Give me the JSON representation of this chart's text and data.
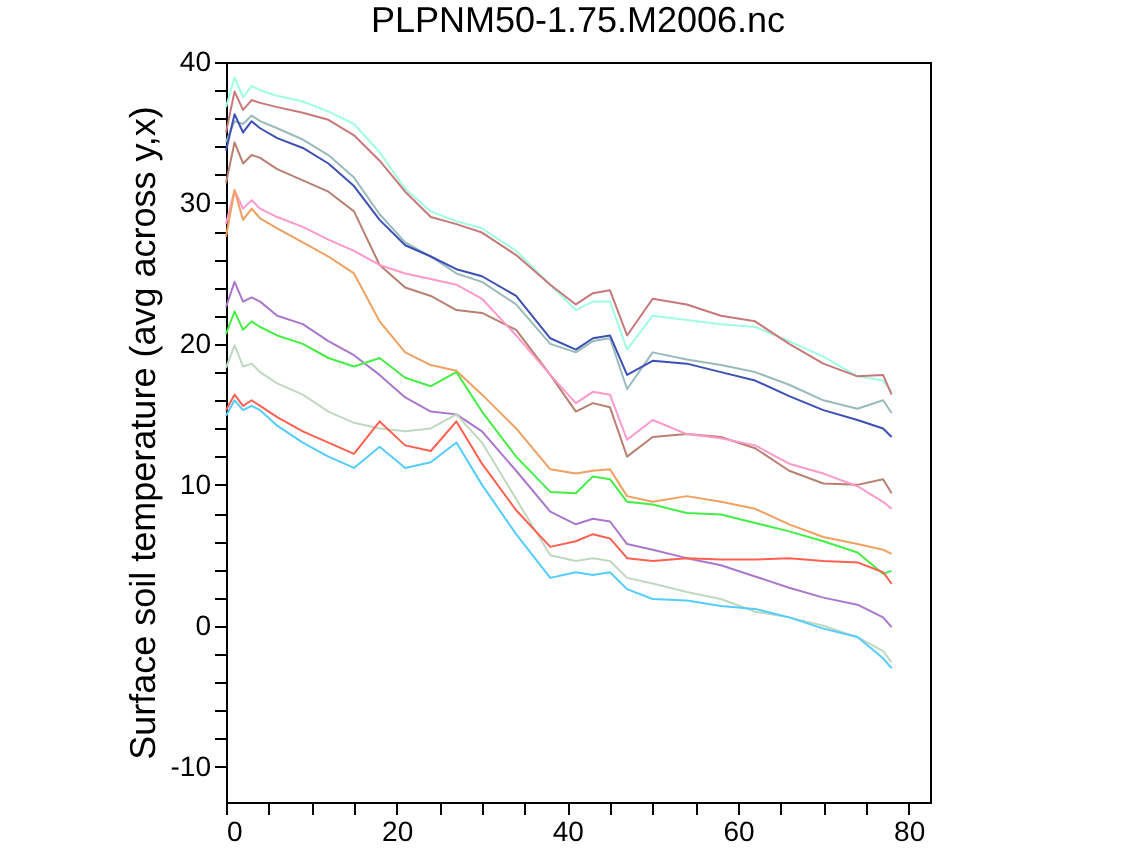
{
  "chart_data": {
    "type": "line",
    "title": "PLPNM50-1.75.M2006.nc",
    "ylabel": "Surface soil temperature (avg across y,x)",
    "x": [
      0,
      1,
      2,
      3,
      4,
      6,
      9,
      12,
      15,
      18,
      21,
      24,
      27,
      30,
      34,
      38,
      41,
      43,
      45,
      47,
      50,
      54,
      58,
      62,
      66,
      70,
      74,
      77,
      78
    ],
    "xlim": [
      0,
      82.5
    ],
    "ylim": [
      -12.5,
      40
    ],
    "xticks": [
      0,
      {
        "value": 5,
        "label": null
      },
      {
        "value": 10,
        "label": null
      },
      {
        "value": 15,
        "label": null
      },
      20,
      {
        "value": 25,
        "label": null
      },
      {
        "value": 30,
        "label": null
      },
      {
        "value": 35,
        "label": null
      },
      40,
      {
        "value": 45,
        "label": null
      },
      {
        "value": 50,
        "label": null
      },
      {
        "value": 55,
        "label": null
      },
      60,
      {
        "value": 65,
        "label": null
      },
      {
        "value": 70,
        "label": null
      },
      {
        "value": 75,
        "label": null
      },
      80
    ],
    "yticks": [
      -10,
      {
        "value": -8,
        "label": null
      },
      {
        "value": -6,
        "label": null
      },
      {
        "value": -4,
        "label": null
      },
      {
        "value": -2,
        "label": null
      },
      0,
      {
        "value": 2,
        "label": null
      },
      {
        "value": 4,
        "label": null
      },
      {
        "value": 6,
        "label": null
      },
      {
        "value": 8,
        "label": null
      },
      10,
      {
        "value": 12,
        "label": null
      },
      {
        "value": 14,
        "label": null
      },
      {
        "value": 16,
        "label": null
      },
      {
        "value": 18,
        "label": null
      },
      20,
      {
        "value": 22,
        "label": null
      },
      {
        "value": 24,
        "label": null
      },
      {
        "value": 26,
        "label": null
      },
      {
        "value": 28,
        "label": null
      },
      30,
      {
        "value": 32,
        "label": null
      },
      {
        "value": 34,
        "label": null
      },
      {
        "value": 36,
        "label": null
      },
      {
        "value": 38,
        "label": null
      },
      40
    ],
    "grid": false,
    "legend": false,
    "line_style": "solid",
    "marker": "none",
    "series": [
      {
        "color": "#a0ffe0",
        "values": [
          36.8,
          38.9,
          37.5,
          38.3,
          38.0,
          37.6,
          37.2,
          36.5,
          35.6,
          33.6,
          31.0,
          29.4,
          28.7,
          28.2,
          26.6,
          24.2,
          22.4,
          23.0,
          23.0,
          19.6,
          22.0,
          21.7,
          21.4,
          21.2,
          20.2,
          19.1,
          17.7,
          17.4,
          16.6
        ]
      },
      {
        "color": "#c87878",
        "values": [
          35.0,
          37.9,
          36.6,
          37.3,
          37.1,
          36.8,
          36.4,
          35.9,
          34.8,
          33.0,
          30.8,
          29.0,
          28.5,
          27.9,
          26.3,
          24.2,
          22.8,
          23.6,
          23.8,
          20.6,
          23.2,
          22.8,
          22.0,
          21.6,
          20.0,
          18.6,
          17.7,
          17.8,
          16.4
        ]
      },
      {
        "color": "#99bbbb",
        "values": [
          34.3,
          35.8,
          35.6,
          36.2,
          35.8,
          35.3,
          34.5,
          33.4,
          31.8,
          29.2,
          27.2,
          26.2,
          25.0,
          24.4,
          22.8,
          20.0,
          19.4,
          20.2,
          20.4,
          16.8,
          19.4,
          18.9,
          18.5,
          18.0,
          17.1,
          16.0,
          15.4,
          16.0,
          15.1
        ]
      },
      {
        "color": "#3c50b4",
        "values": [
          33.7,
          36.3,
          35.0,
          35.8,
          35.3,
          34.6,
          33.9,
          32.8,
          31.2,
          28.8,
          27.0,
          26.2,
          25.3,
          24.8,
          23.4,
          20.4,
          19.6,
          20.4,
          20.6,
          17.8,
          18.8,
          18.6,
          18.0,
          17.4,
          16.3,
          15.3,
          14.6,
          14.0,
          13.4
        ]
      },
      {
        "color": "#b88070",
        "values": [
          31.4,
          34.3,
          32.8,
          33.4,
          33.2,
          32.4,
          31.6,
          30.8,
          29.4,
          25.6,
          24.0,
          23.4,
          22.4,
          22.2,
          21.0,
          17.8,
          15.2,
          15.8,
          15.5,
          12.0,
          13.4,
          13.6,
          13.4,
          12.6,
          11.0,
          10.1,
          10.0,
          10.4,
          9.4
        ]
      },
      {
        "color": "#ff99cc",
        "values": [
          28.5,
          30.9,
          29.6,
          30.2,
          29.6,
          29.0,
          28.3,
          27.4,
          26.6,
          25.6,
          25.0,
          24.6,
          24.2,
          23.2,
          20.6,
          17.8,
          15.8,
          16.6,
          16.4,
          13.2,
          14.6,
          13.6,
          13.3,
          12.8,
          11.5,
          10.8,
          9.9,
          8.8,
          8.3
        ]
      },
      {
        "color": "#f0a060",
        "values": [
          27.6,
          30.9,
          28.8,
          29.6,
          28.9,
          28.2,
          27.2,
          26.2,
          25.0,
          21.6,
          19.4,
          18.5,
          18.1,
          16.4,
          14.0,
          11.1,
          10.8,
          11.0,
          11.1,
          9.2,
          8.8,
          9.2,
          8.8,
          8.3,
          7.2,
          6.3,
          5.8,
          5.4,
          5.1
        ]
      },
      {
        "color": "#aa77cc",
        "values": [
          22.6,
          24.4,
          23.0,
          23.3,
          23.0,
          22.0,
          21.4,
          20.2,
          19.2,
          17.8,
          16.2,
          15.2,
          15.0,
          13.8,
          11.0,
          8.1,
          7.2,
          7.6,
          7.4,
          5.8,
          5.4,
          4.8,
          4.3,
          3.5,
          2.7,
          2.0,
          1.5,
          0.6,
          -0.1
        ]
      },
      {
        "color": "#44ee44",
        "values": [
          20.7,
          22.3,
          21.0,
          21.6,
          21.2,
          20.6,
          20.0,
          19.0,
          18.4,
          19.0,
          17.6,
          17.0,
          18.0,
          15.2,
          12.0,
          9.5,
          9.4,
          10.6,
          10.4,
          8.8,
          8.6,
          8.0,
          7.9,
          7.3,
          6.7,
          6.0,
          5.2,
          3.7,
          3.9
        ]
      },
      {
        "color": "#c0d8c0",
        "values": [
          18.3,
          19.9,
          18.4,
          18.6,
          18.0,
          17.2,
          16.4,
          15.2,
          14.4,
          14.0,
          13.8,
          14.0,
          15.0,
          13.0,
          9.0,
          5.0,
          4.6,
          4.8,
          4.6,
          3.4,
          3.0,
          2.4,
          1.9,
          1.0,
          0.6,
          0.0,
          -0.8,
          -1.8,
          -2.6
        ]
      },
      {
        "color": "#ff6050",
        "values": [
          15.3,
          16.4,
          15.6,
          16.0,
          15.6,
          14.8,
          13.8,
          13.0,
          12.2,
          14.5,
          12.8,
          12.4,
          14.5,
          11.5,
          8.2,
          5.6,
          6.0,
          6.5,
          6.2,
          4.8,
          4.6,
          4.8,
          4.7,
          4.7,
          4.8,
          4.6,
          4.5,
          3.8,
          3.0
        ]
      },
      {
        "color": "#55ccff",
        "values": [
          14.9,
          16.0,
          15.3,
          15.6,
          15.3,
          14.2,
          13.0,
          12.0,
          11.2,
          12.7,
          11.2,
          11.6,
          13.0,
          10.0,
          6.5,
          3.4,
          3.8,
          3.6,
          3.8,
          2.6,
          1.9,
          1.8,
          1.4,
          1.2,
          0.6,
          -0.2,
          -0.8,
          -2.3,
          -3.0
        ]
      }
    ]
  }
}
